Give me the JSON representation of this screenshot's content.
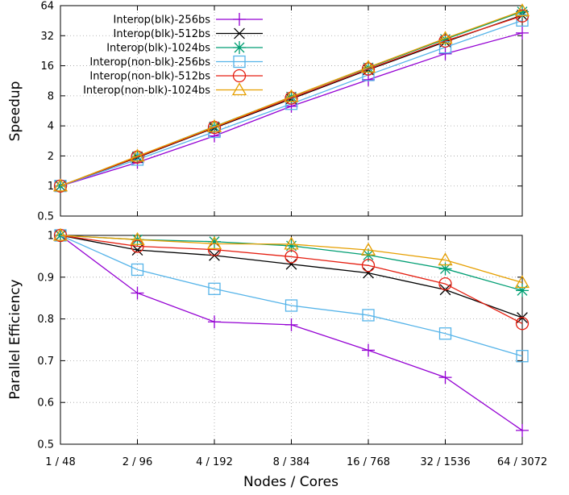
{
  "chart_data": [
    {
      "type": "line",
      "title": "",
      "xlabel": "",
      "ylabel": "Speedup",
      "yscale": "log2",
      "ylim": [
        0.5,
        64
      ],
      "yticks": [
        "0.5",
        "1",
        "2",
        "4",
        "8",
        "16",
        "32",
        "64"
      ],
      "ytick_values": [
        0.5,
        1,
        2,
        4,
        8,
        16,
        32,
        64
      ],
      "categories": [
        "1 / 48",
        "2 / 96",
        "4 / 192",
        "8 / 384",
        "16 / 768",
        "32 / 1536",
        "64 / 3072"
      ],
      "grid": true,
      "legend": "top-left",
      "series": [
        {
          "name": "Interop(blk)-256bs",
          "color": "#9400d3",
          "marker": "plus",
          "values": [
            1,
            1.72,
            3.17,
            6.29,
            11.6,
            21.1,
            34.1
          ]
        },
        {
          "name": "Interop(blk)-512bs",
          "color": "#000000",
          "marker": "cross",
          "values": [
            1,
            1.93,
            3.81,
            7.45,
            14.6,
            27.8,
            51.4
          ]
        },
        {
          "name": "Interop(blk)-1024bs",
          "color": "#009e73",
          "marker": "star",
          "values": [
            1,
            1.98,
            3.94,
            7.82,
            15.3,
            29.5,
            55.6
          ]
        },
        {
          "name": "Interop(non-blk)-256bs",
          "color": "#56b4e9",
          "marker": "square",
          "values": [
            1,
            1.84,
            3.49,
            6.66,
            12.95,
            24.5,
            45.5
          ]
        },
        {
          "name": "Interop(non-blk)-512bs",
          "color": "#e51e10",
          "marker": "circle",
          "values": [
            1,
            1.95,
            3.86,
            7.6,
            14.85,
            28.3,
            50.5
          ]
        },
        {
          "name": "Interop(non-blk)-1024bs",
          "color": "#e69f00",
          "marker": "triangle",
          "values": [
            1,
            1.99,
            3.92,
            7.84,
            15.45,
            30.1,
            56.8
          ]
        }
      ]
    },
    {
      "type": "line",
      "title": "",
      "xlabel": "Nodes / Cores",
      "ylabel": "Parallel Efficiency",
      "ylim": [
        0.5,
        1.0
      ],
      "yticks": [
        "0.5",
        "0.6",
        "0.7",
        "0.8",
        "0.9",
        "1"
      ],
      "ytick_values": [
        0.5,
        0.6,
        0.7,
        0.8,
        0.9,
        1.0
      ],
      "categories": [
        "1 / 48",
        "2 / 96",
        "4 / 192",
        "8 / 384",
        "16 / 768",
        "32 / 1536",
        "64 / 3072"
      ],
      "grid": true,
      "series": [
        {
          "name": "Interop(blk)-256bs",
          "color": "#9400d3",
          "marker": "plus",
          "values": [
            1.0,
            0.862,
            0.793,
            0.786,
            0.725,
            0.66,
            0.533
          ]
        },
        {
          "name": "Interop(blk)-512bs",
          "color": "#000000",
          "marker": "cross",
          "values": [
            1.0,
            0.965,
            0.952,
            0.931,
            0.91,
            0.87,
            0.803
          ]
        },
        {
          "name": "Interop(blk)-1024bs",
          "color": "#009e73",
          "marker": "star",
          "values": [
            1.0,
            0.99,
            0.985,
            0.975,
            0.953,
            0.92,
            0.868
          ]
        },
        {
          "name": "Interop(non-blk)-256bs",
          "color": "#56b4e9",
          "marker": "square",
          "values": [
            1.0,
            0.918,
            0.872,
            0.832,
            0.809,
            0.765,
            0.711
          ]
        },
        {
          "name": "Interop(non-blk)-512bs",
          "color": "#e51e10",
          "marker": "circle",
          "values": [
            1.0,
            0.974,
            0.966,
            0.949,
            0.928,
            0.884,
            0.789
          ]
        },
        {
          "name": "Interop(non-blk)-1024bs",
          "color": "#e69f00",
          "marker": "triangle",
          "values": [
            1.0,
            0.99,
            0.98,
            0.979,
            0.965,
            0.941,
            0.887
          ]
        }
      ]
    }
  ]
}
